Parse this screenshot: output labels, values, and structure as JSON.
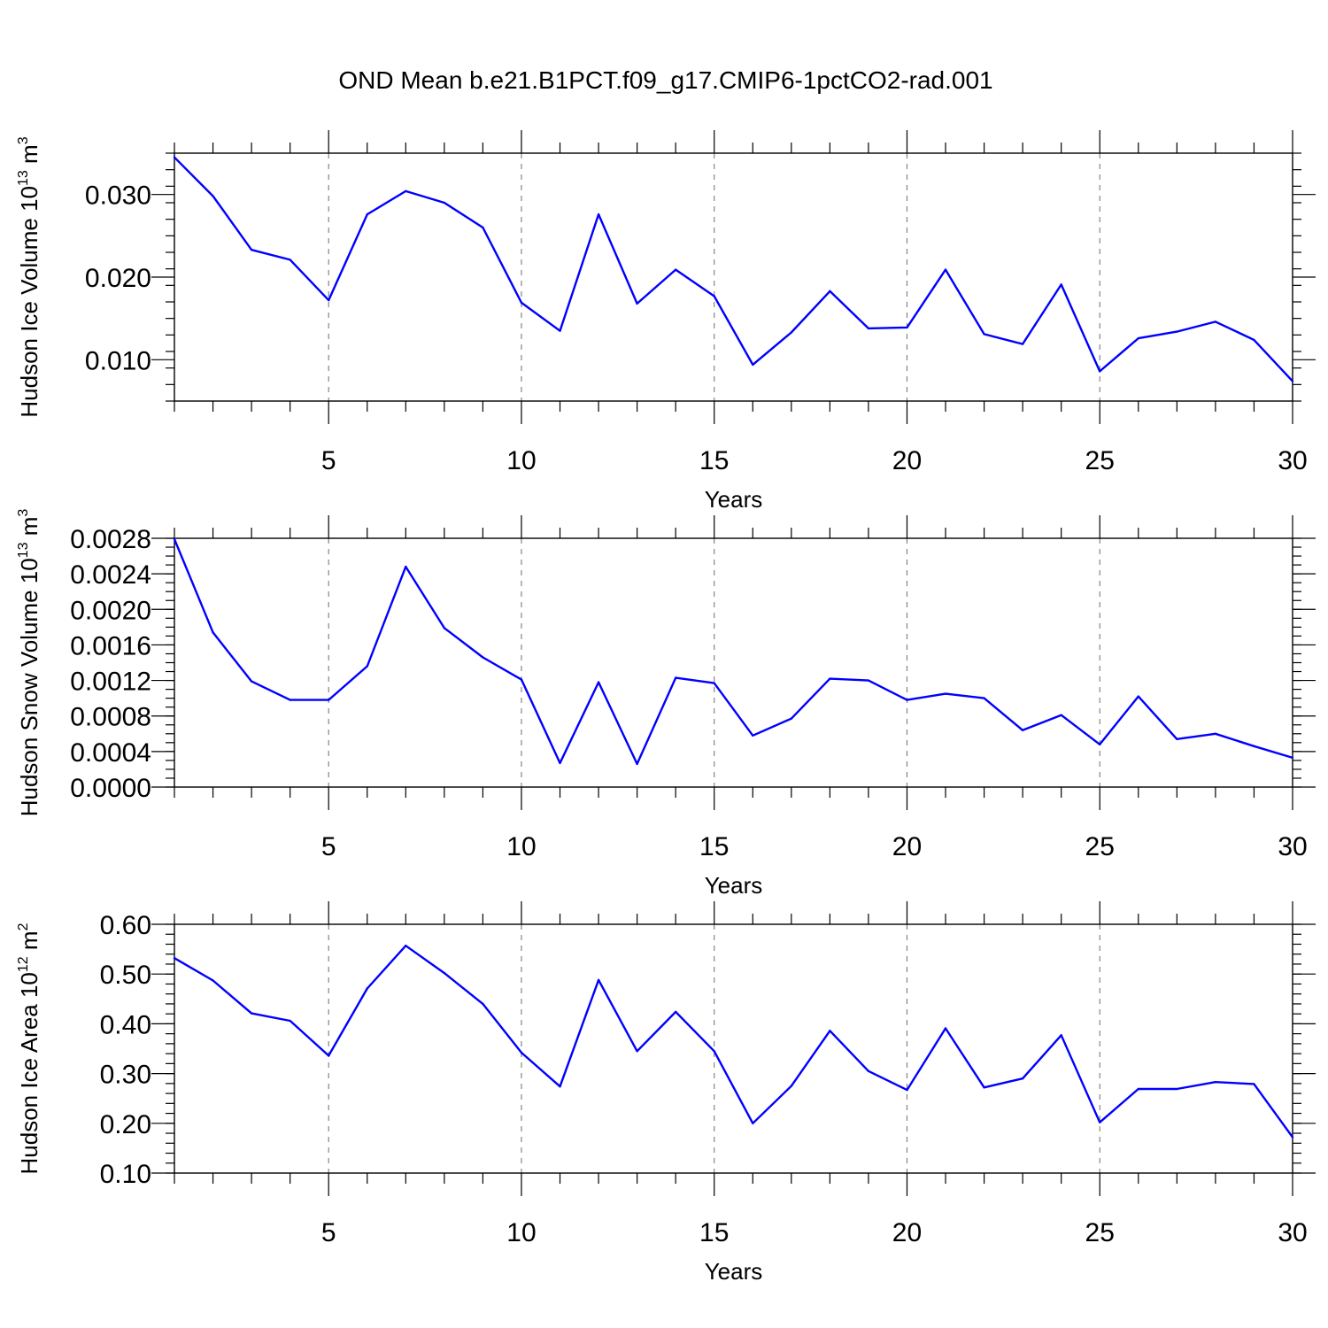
{
  "title": "OND Mean b.e21.B1PCT.f09_g17.CMIP6-1pctCO2-rad.001",
  "colors": {
    "line": "#0000ff",
    "grid": "#7a7a7a",
    "axis": "#000000"
  },
  "chart_data": [
    {
      "type": "line",
      "xlabel": "Years",
      "ylabel": {
        "prefix": "Hudson Ice Volume 10",
        "exponent": "13",
        "unit": " m",
        "unit_exponent": "3"
      },
      "xlim": [
        1,
        30
      ],
      "ylim": [
        0.005,
        0.035
      ],
      "x_ticks": [
        5,
        10,
        15,
        20,
        25,
        30
      ],
      "x_tick_labels": [
        "5",
        "10",
        "15",
        "20",
        "25",
        "30"
      ],
      "y_ticks": [
        0.01,
        0.02,
        0.03
      ],
      "y_tick_labels": [
        "0.010",
        "0.020",
        "0.030"
      ],
      "y_minor_step": 0.002,
      "grid": "vertical dashed at major x ticks",
      "x": [
        1,
        2,
        3,
        4,
        5,
        6,
        7,
        8,
        9,
        10,
        11,
        12,
        13,
        14,
        15,
        16,
        17,
        18,
        19,
        20,
        21,
        22,
        23,
        24,
        25,
        26,
        27,
        28,
        29,
        30
      ],
      "series": [
        {
          "values": [
            0.0345,
            0.0298,
            0.0233,
            0.0221,
            0.0172,
            0.0276,
            0.0304,
            0.029,
            0.026,
            0.0169,
            0.0135,
            0.0276,
            0.0168,
            0.0209,
            0.0177,
            0.0094,
            0.0133,
            0.0183,
            0.0138,
            0.0139,
            0.0209,
            0.0131,
            0.0119,
            0.0191,
            0.0086,
            0.0126,
            0.0134,
            0.0146,
            0.0124,
            0.0074
          ]
        }
      ]
    },
    {
      "type": "line",
      "xlabel": "Years",
      "ylabel": {
        "prefix": "Hudson Snow Volume 10",
        "exponent": "13",
        "unit": " m",
        "unit_exponent": "3"
      },
      "xlim": [
        1,
        30
      ],
      "ylim": [
        0.0,
        0.0028
      ],
      "x_ticks": [
        5,
        10,
        15,
        20,
        25,
        30
      ],
      "x_tick_labels": [
        "5",
        "10",
        "15",
        "20",
        "25",
        "30"
      ],
      "y_ticks": [
        0.0,
        0.0004,
        0.0008,
        0.0012,
        0.0016,
        0.002,
        0.0024,
        0.0028
      ],
      "y_tick_labels": [
        "0.0000",
        "0.0004",
        "0.0008",
        "0.0012",
        "0.0016",
        "0.0020",
        "0.0024",
        "0.0028"
      ],
      "y_minor_step": 0.0001,
      "grid": "vertical dashed at major x ticks",
      "x": [
        1,
        2,
        3,
        4,
        5,
        6,
        7,
        8,
        9,
        10,
        11,
        12,
        13,
        14,
        15,
        16,
        17,
        18,
        19,
        20,
        21,
        22,
        23,
        24,
        25,
        26,
        27,
        28,
        29,
        30
      ],
      "series": [
        {
          "values": [
            0.00279,
            0.00174,
            0.00119,
            0.00098,
            0.00098,
            0.00136,
            0.00248,
            0.00179,
            0.00146,
            0.00121,
            0.00027,
            0.00118,
            0.00026,
            0.00123,
            0.00117,
            0.00058,
            0.00077,
            0.00122,
            0.0012,
            0.00098,
            0.00105,
            0.001,
            0.00064,
            0.00081,
            0.00048,
            0.00102,
            0.00054,
            0.0006,
            0.00046,
            0.00033
          ]
        }
      ]
    },
    {
      "type": "line",
      "xlabel": "Years",
      "ylabel": {
        "prefix": "Hudson Ice Area 10",
        "exponent": "12",
        "unit": " m",
        "unit_exponent": "2"
      },
      "xlim": [
        1,
        30
      ],
      "ylim": [
        0.1,
        0.6
      ],
      "x_ticks": [
        5,
        10,
        15,
        20,
        25,
        30
      ],
      "x_tick_labels": [
        "5",
        "10",
        "15",
        "20",
        "25",
        "30"
      ],
      "y_ticks": [
        0.1,
        0.2,
        0.3,
        0.4,
        0.5,
        0.6
      ],
      "y_tick_labels": [
        "0.10",
        "0.20",
        "0.30",
        "0.40",
        "0.50",
        "0.60"
      ],
      "y_minor_step": 0.02,
      "grid": "vertical dashed at major x ticks",
      "x": [
        1,
        2,
        3,
        4,
        5,
        6,
        7,
        8,
        9,
        10,
        11,
        12,
        13,
        14,
        15,
        16,
        17,
        18,
        19,
        20,
        21,
        22,
        23,
        24,
        25,
        26,
        27,
        28,
        29,
        30
      ],
      "series": [
        {
          "values": [
            0.532,
            0.487,
            0.421,
            0.406,
            0.336,
            0.471,
            0.557,
            0.502,
            0.44,
            0.342,
            0.274,
            0.488,
            0.345,
            0.424,
            0.345,
            0.2,
            0.275,
            0.386,
            0.305,
            0.267,
            0.391,
            0.272,
            0.29,
            0.377,
            0.202,
            0.269,
            0.269,
            0.283,
            0.279,
            0.172
          ]
        }
      ]
    }
  ]
}
